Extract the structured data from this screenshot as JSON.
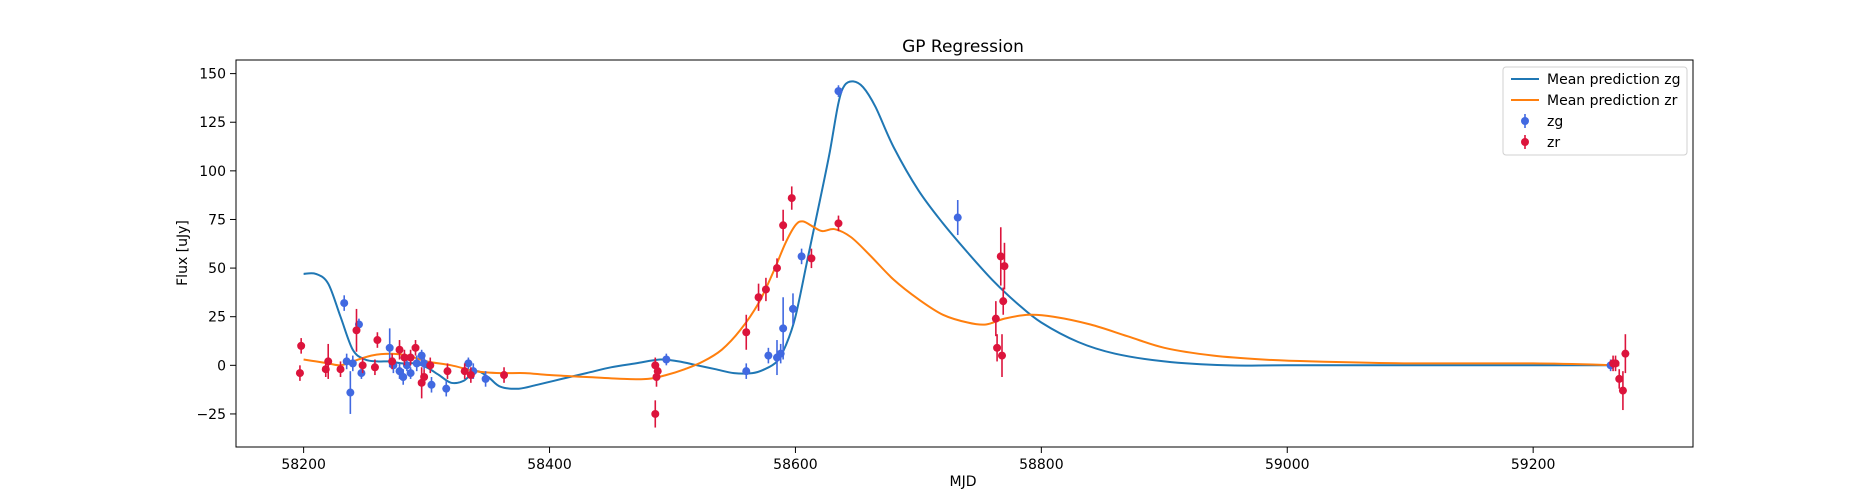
{
  "chart_data": {
    "type": "scatter",
    "title": "GP Regression",
    "xlabel": "MJD",
    "ylabel": "Flux [uJy]",
    "xlim": [
      58145,
      59330
    ],
    "ylim": [
      -42,
      157
    ],
    "grid": false,
    "legend_position": "top-right",
    "x_ticks": [
      58200,
      58400,
      58600,
      58800,
      59000,
      59200
    ],
    "x_tick_labels": [
      "58200",
      "58400",
      "58600",
      "58800",
      "59000",
      "59200"
    ],
    "y_ticks": [
      -25,
      0,
      25,
      50,
      75,
      100,
      125,
      150
    ],
    "y_tick_labels": [
      "−25",
      "0",
      "25",
      "50",
      "75",
      "100",
      "125",
      "150"
    ],
    "lines": [
      {
        "name": "Mean prediction zg",
        "color": "#1f77b4",
        "points": [
          [
            58200,
            47
          ],
          [
            58210,
            47
          ],
          [
            58220,
            42
          ],
          [
            58230,
            25
          ],
          [
            58240,
            8
          ],
          [
            58250,
            3
          ],
          [
            58260,
            2
          ],
          [
            58270,
            2
          ],
          [
            58280,
            1
          ],
          [
            58290,
            1
          ],
          [
            58300,
            -1
          ],
          [
            58310,
            -5
          ],
          [
            58320,
            -9
          ],
          [
            58330,
            -8
          ],
          [
            58340,
            -3
          ],
          [
            58350,
            -6
          ],
          [
            58360,
            -11
          ],
          [
            58375,
            -12
          ],
          [
            58390,
            -10
          ],
          [
            58410,
            -7
          ],
          [
            58430,
            -4
          ],
          [
            58450,
            -1
          ],
          [
            58470,
            1
          ],
          [
            58490,
            3
          ],
          [
            58505,
            2
          ],
          [
            58520,
            0
          ],
          [
            58535,
            -2
          ],
          [
            58550,
            -4
          ],
          [
            58565,
            -4
          ],
          [
            58575,
            -2
          ],
          [
            58585,
            2
          ],
          [
            58592,
            10
          ],
          [
            58600,
            25
          ],
          [
            58610,
            55
          ],
          [
            58620,
            85
          ],
          [
            58628,
            110
          ],
          [
            58635,
            135
          ],
          [
            58640,
            144
          ],
          [
            58647,
            146
          ],
          [
            58655,
            143
          ],
          [
            58665,
            133
          ],
          [
            58680,
            112
          ],
          [
            58700,
            90
          ],
          [
            58720,
            73
          ],
          [
            58740,
            58
          ],
          [
            58760,
            44
          ],
          [
            58780,
            32
          ],
          [
            58800,
            22
          ],
          [
            58830,
            12
          ],
          [
            58860,
            6
          ],
          [
            58900,
            2
          ],
          [
            58950,
            0
          ],
          [
            59000,
            0
          ],
          [
            59100,
            0
          ],
          [
            59200,
            0
          ],
          [
            59270,
            0
          ]
        ]
      },
      {
        "name": "Mean prediction zr",
        "color": "#ff7f0e",
        "points": [
          [
            58200,
            3
          ],
          [
            58210,
            2
          ],
          [
            58220,
            1
          ],
          [
            58230,
            0
          ],
          [
            58240,
            2
          ],
          [
            58255,
            5
          ],
          [
            58270,
            6
          ],
          [
            58285,
            5
          ],
          [
            58300,
            2
          ],
          [
            58320,
            0
          ],
          [
            58340,
            -3
          ],
          [
            58360,
            -4
          ],
          [
            58380,
            -4
          ],
          [
            58400,
            -5
          ],
          [
            58430,
            -6
          ],
          [
            58460,
            -7
          ],
          [
            58480,
            -7
          ],
          [
            58495,
            -5
          ],
          [
            58510,
            -2
          ],
          [
            58525,
            2
          ],
          [
            58540,
            8
          ],
          [
            58555,
            18
          ],
          [
            58570,
            32
          ],
          [
            58582,
            48
          ],
          [
            58592,
            63
          ],
          [
            58600,
            72
          ],
          [
            58606,
            74
          ],
          [
            58615,
            71
          ],
          [
            58622,
            69
          ],
          [
            58632,
            70
          ],
          [
            58645,
            66
          ],
          [
            58660,
            57
          ],
          [
            58680,
            44
          ],
          [
            58700,
            34
          ],
          [
            58720,
            26
          ],
          [
            58740,
            22
          ],
          [
            58755,
            21
          ],
          [
            58770,
            24
          ],
          [
            58790,
            26
          ],
          [
            58810,
            25
          ],
          [
            58840,
            21
          ],
          [
            58870,
            15
          ],
          [
            58900,
            9
          ],
          [
            58940,
            5
          ],
          [
            58980,
            3
          ],
          [
            59020,
            2
          ],
          [
            59100,
            1
          ],
          [
            59200,
            1
          ],
          [
            59270,
            0
          ]
        ]
      }
    ],
    "series": [
      {
        "name": "zg",
        "color": "#4169e1",
        "points": [
          {
            "x": 58233,
            "y": 32,
            "err": 4
          },
          {
            "x": 58235,
            "y": 2,
            "err": 4
          },
          {
            "x": 58238,
            "y": -14,
            "err": 11
          },
          {
            "x": 58240,
            "y": 1,
            "err": 4
          },
          {
            "x": 58245,
            "y": 21,
            "err": 3
          },
          {
            "x": 58247,
            "y": -4,
            "err": 3
          },
          {
            "x": 58270,
            "y": 9,
            "err": 10
          },
          {
            "x": 58273,
            "y": 0,
            "err": 4
          },
          {
            "x": 58278,
            "y": -3,
            "err": 4
          },
          {
            "x": 58281,
            "y": -6,
            "err": 4
          },
          {
            "x": 58284,
            "y": 0,
            "err": 3
          },
          {
            "x": 58287,
            "y": -4,
            "err": 3
          },
          {
            "x": 58292,
            "y": 1,
            "err": 4
          },
          {
            "x": 58296,
            "y": 5,
            "err": 3
          },
          {
            "x": 58298,
            "y": 1,
            "err": 3
          },
          {
            "x": 58304,
            "y": -10,
            "err": 4
          },
          {
            "x": 58316,
            "y": -12,
            "err": 4
          },
          {
            "x": 58334,
            "y": 1,
            "err": 3
          },
          {
            "x": 58338,
            "y": -3,
            "err": 4
          },
          {
            "x": 58348,
            "y": -7,
            "err": 4
          },
          {
            "x": 58495,
            "y": 3,
            "err": 3
          },
          {
            "x": 58560,
            "y": -3,
            "err": 4
          },
          {
            "x": 58578,
            "y": 5,
            "err": 4
          },
          {
            "x": 58585,
            "y": 4,
            "err": 9
          },
          {
            "x": 58588,
            "y": 6,
            "err": 5
          },
          {
            "x": 58590,
            "y": 19,
            "err": 16
          },
          {
            "x": 58598,
            "y": 29,
            "err": 8
          },
          {
            "x": 58605,
            "y": 56,
            "err": 4
          },
          {
            "x": 58635,
            "y": 141,
            "err": 3
          },
          {
            "x": 58732,
            "y": 76,
            "err": 9
          },
          {
            "x": 59263,
            "y": 0,
            "err": 3
          }
        ]
      },
      {
        "name": "zr",
        "color": "#dc143c",
        "points": [
          {
            "x": 58197,
            "y": -4,
            "err": 4
          },
          {
            "x": 58198,
            "y": 10,
            "err": 4
          },
          {
            "x": 58218,
            "y": -2,
            "err": 4
          },
          {
            "x": 58220,
            "y": 2,
            "err": 9
          },
          {
            "x": 58230,
            "y": -2,
            "err": 4
          },
          {
            "x": 58243,
            "y": 18,
            "err": 11
          },
          {
            "x": 58248,
            "y": 0,
            "err": 4
          },
          {
            "x": 58258,
            "y": -1,
            "err": 4
          },
          {
            "x": 58260,
            "y": 13,
            "err": 4
          },
          {
            "x": 58272,
            "y": 2,
            "err": 4
          },
          {
            "x": 58278,
            "y": 8,
            "err": 5
          },
          {
            "x": 58282,
            "y": 4,
            "err": 4
          },
          {
            "x": 58287,
            "y": 4,
            "err": 4
          },
          {
            "x": 58291,
            "y": 9,
            "err": 4
          },
          {
            "x": 58296,
            "y": -9,
            "err": 8
          },
          {
            "x": 58298,
            "y": -6,
            "err": 4
          },
          {
            "x": 58303,
            "y": 0,
            "err": 4
          },
          {
            "x": 58317,
            "y": -3,
            "err": 4
          },
          {
            "x": 58331,
            "y": -3,
            "err": 4
          },
          {
            "x": 58336,
            "y": -5,
            "err": 4
          },
          {
            "x": 58363,
            "y": -5,
            "err": 4
          },
          {
            "x": 58486,
            "y": 0,
            "err": 4
          },
          {
            "x": 58487,
            "y": -6,
            "err": 5
          },
          {
            "x": 58488,
            "y": -3,
            "err": 4
          },
          {
            "x": 58486,
            "y": -25,
            "err": 7
          },
          {
            "x": 58560,
            "y": 17,
            "err": 9
          },
          {
            "x": 58570,
            "y": 35,
            "err": 7
          },
          {
            "x": 58576,
            "y": 39,
            "err": 6
          },
          {
            "x": 58585,
            "y": 50,
            "err": 5
          },
          {
            "x": 58590,
            "y": 72,
            "err": 8
          },
          {
            "x": 58597,
            "y": 86,
            "err": 6
          },
          {
            "x": 58613,
            "y": 55,
            "err": 5
          },
          {
            "x": 58635,
            "y": 73,
            "err": 4
          },
          {
            "x": 58763,
            "y": 24,
            "err": 9
          },
          {
            "x": 58764,
            "y": 9,
            "err": 7
          },
          {
            "x": 58767,
            "y": 56,
            "err": 15
          },
          {
            "x": 58768,
            "y": 5,
            "err": 11
          },
          {
            "x": 58769,
            "y": 33,
            "err": 7
          },
          {
            "x": 58770,
            "y": 51,
            "err": 12
          },
          {
            "x": 59265,
            "y": 1,
            "err": 4
          },
          {
            "x": 59267,
            "y": 1,
            "err": 4
          },
          {
            "x": 59270,
            "y": -7,
            "err": 5
          },
          {
            "x": 59273,
            "y": -13,
            "err": 10
          },
          {
            "x": 59275,
            "y": 6,
            "err": 10
          }
        ]
      }
    ],
    "legend": [
      {
        "label": "Mean prediction zg",
        "kind": "line",
        "color": "#1f77b4"
      },
      {
        "label": "Mean prediction zr",
        "kind": "line",
        "color": "#ff7f0e"
      },
      {
        "label": "zg",
        "kind": "errorbar",
        "color": "#4169e1"
      },
      {
        "label": "zr",
        "kind": "errorbar",
        "color": "#dc143c"
      }
    ]
  }
}
